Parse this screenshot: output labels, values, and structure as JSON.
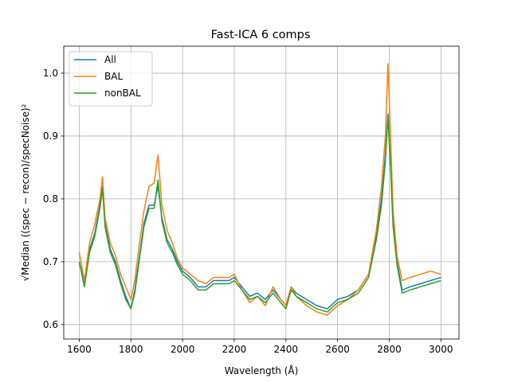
{
  "chart_data": {
    "type": "line",
    "title": "Fast-ICA 6 comps",
    "xlabel": "Wavelength (Å)",
    "ylabel": "√Median ((spec − recon)/specNoise)²",
    "xlim": [
      1540,
      3070
    ],
    "ylim": [
      0.577,
      1.043
    ],
    "xticks": [
      1600,
      1800,
      2000,
      2200,
      2400,
      2600,
      2800,
      3000
    ],
    "xtick_labels": [
      "1600",
      "1800",
      "2000",
      "2200",
      "2400",
      "2600",
      "2800",
      "3000"
    ],
    "yticks": [
      0.6,
      0.7,
      0.8,
      0.9,
      1.0
    ],
    "ytick_labels": [
      "0.6",
      "0.7",
      "0.8",
      "0.9",
      "1.0"
    ],
    "grid": true,
    "legend_position": "top-left",
    "series": [
      {
        "name": "All",
        "color": "#1f77b4",
        "x": [
          1600,
          1620,
          1640,
          1660,
          1680,
          1690,
          1700,
          1720,
          1740,
          1760,
          1780,
          1800,
          1815,
          1830,
          1850,
          1870,
          1890,
          1905,
          1920,
          1940,
          1960,
          1980,
          2000,
          2030,
          2060,
          2090,
          2120,
          2150,
          2180,
          2200,
          2230,
          2260,
          2290,
          2320,
          2350,
          2380,
          2400,
          2420,
          2440,
          2480,
          2520,
          2560,
          2600,
          2640,
          2680,
          2720,
          2750,
          2770,
          2785,
          2795,
          2805,
          2815,
          2830,
          2850,
          2880,
          2920,
          2960,
          3000
        ],
        "y": [
          0.7,
          0.665,
          0.72,
          0.745,
          0.79,
          0.82,
          0.76,
          0.72,
          0.7,
          0.67,
          0.645,
          0.625,
          0.655,
          0.7,
          0.76,
          0.79,
          0.79,
          0.82,
          0.77,
          0.735,
          0.72,
          0.7,
          0.685,
          0.675,
          0.66,
          0.66,
          0.67,
          0.67,
          0.67,
          0.675,
          0.66,
          0.645,
          0.65,
          0.64,
          0.655,
          0.64,
          0.63,
          0.66,
          0.65,
          0.64,
          0.63,
          0.625,
          0.64,
          0.645,
          0.655,
          0.68,
          0.74,
          0.8,
          0.87,
          0.935,
          0.86,
          0.76,
          0.7,
          0.655,
          0.66,
          0.665,
          0.67,
          0.675
        ]
      },
      {
        "name": "BAL",
        "color": "#ff7f0e",
        "x": [
          1600,
          1620,
          1640,
          1660,
          1680,
          1690,
          1700,
          1720,
          1740,
          1760,
          1780,
          1800,
          1815,
          1830,
          1850,
          1870,
          1890,
          1905,
          1920,
          1940,
          1960,
          1980,
          2000,
          2030,
          2060,
          2090,
          2120,
          2150,
          2180,
          2200,
          2230,
          2260,
          2290,
          2320,
          2350,
          2380,
          2400,
          2420,
          2440,
          2480,
          2520,
          2560,
          2600,
          2640,
          2680,
          2720,
          2750,
          2770,
          2785,
          2795,
          2805,
          2815,
          2830,
          2850,
          2880,
          2920,
          2960,
          3000
        ],
        "y": [
          0.715,
          0.67,
          0.73,
          0.76,
          0.8,
          0.835,
          0.77,
          0.73,
          0.71,
          0.68,
          0.66,
          0.64,
          0.67,
          0.72,
          0.78,
          0.82,
          0.825,
          0.87,
          0.79,
          0.75,
          0.73,
          0.705,
          0.69,
          0.68,
          0.67,
          0.665,
          0.675,
          0.675,
          0.675,
          0.68,
          0.655,
          0.635,
          0.645,
          0.63,
          0.66,
          0.64,
          0.63,
          0.66,
          0.645,
          0.63,
          0.62,
          0.615,
          0.63,
          0.64,
          0.655,
          0.68,
          0.75,
          0.82,
          0.9,
          1.015,
          0.9,
          0.78,
          0.71,
          0.67,
          0.675,
          0.68,
          0.685,
          0.68
        ]
      },
      {
        "name": "nonBAL",
        "color": "#2ca02c",
        "x": [
          1600,
          1620,
          1640,
          1660,
          1680,
          1690,
          1700,
          1720,
          1740,
          1760,
          1780,
          1800,
          1815,
          1830,
          1850,
          1870,
          1890,
          1905,
          1920,
          1940,
          1960,
          1980,
          2000,
          2030,
          2060,
          2090,
          2120,
          2150,
          2180,
          2200,
          2230,
          2260,
          2290,
          2320,
          2350,
          2380,
          2400,
          2420,
          2440,
          2480,
          2520,
          2560,
          2600,
          2640,
          2680,
          2720,
          2750,
          2770,
          2785,
          2795,
          2805,
          2815,
          2830,
          2850,
          2880,
          2920,
          2960,
          3000
        ],
        "y": [
          0.7,
          0.66,
          0.715,
          0.74,
          0.785,
          0.815,
          0.755,
          0.715,
          0.695,
          0.665,
          0.64,
          0.625,
          0.65,
          0.695,
          0.755,
          0.785,
          0.785,
          0.83,
          0.765,
          0.73,
          0.715,
          0.695,
          0.68,
          0.67,
          0.655,
          0.655,
          0.665,
          0.665,
          0.665,
          0.67,
          0.655,
          0.64,
          0.645,
          0.635,
          0.65,
          0.635,
          0.625,
          0.655,
          0.645,
          0.635,
          0.625,
          0.62,
          0.635,
          0.64,
          0.65,
          0.675,
          0.735,
          0.79,
          0.86,
          0.93,
          0.85,
          0.755,
          0.695,
          0.65,
          0.655,
          0.66,
          0.665,
          0.67
        ]
      }
    ]
  }
}
